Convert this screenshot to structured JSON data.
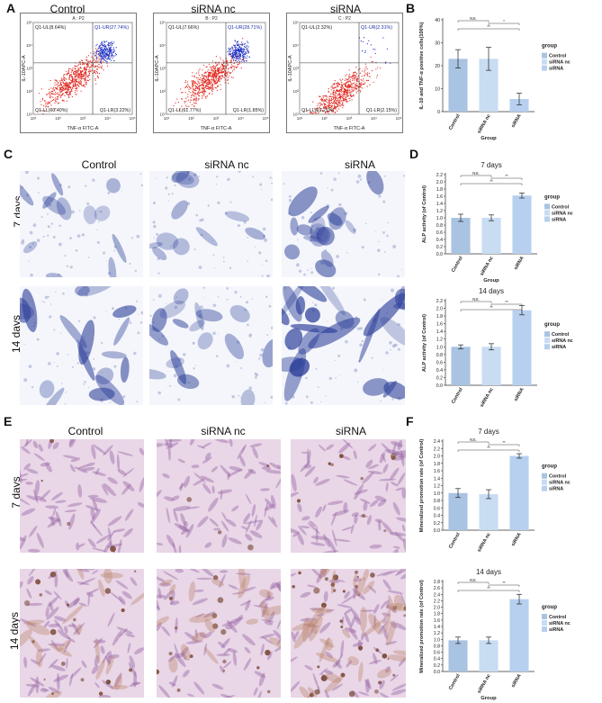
{
  "panel_labels": {
    "A": "A",
    "B": "B",
    "C": "C",
    "D": "D",
    "E": "E",
    "F": "F"
  },
  "group_names": [
    "Control",
    "siRNA nc",
    "siRNA"
  ],
  "row_labels": {
    "d7": "7 days",
    "d14": "14 days"
  },
  "flow": [
    {
      "header": "A : P2",
      "ul": "Q1-UL(8.64%)",
      "ur": "Q1-UR(27.74%)",
      "ll": "Q1-LL(60.40%)",
      "lr": "Q1-LR(3.22%)",
      "xlabel": "TNF-α FITC-A",
      "ylabel": "IL-10APC-A"
    },
    {
      "header": "B : P2",
      "ul": "Q1-UL(7.66%)",
      "ur": "Q1-UR(28.71%)",
      "ll": "Q1-LL(61.77%)",
      "lr": "Q1-LR(1.85%)",
      "xlabel": "TNF-α FITC-A",
      "ylabel": "IL-10APC-A"
    },
    {
      "header": "C : P2",
      "ul": "Q1-UL(2.32%)",
      "ur": "Q1-UR(2.31%)",
      "ll": "Q1-LL(93.21%)",
      "lr": "Q1-LR(2.15%)",
      "xlabel": "TNF-α FITC-A",
      "ylabel": "IL-10APC-A"
    }
  ],
  "flow_axis_ticks": [
    "10¹",
    "10²",
    "10³",
    "10⁴",
    "10⁵"
  ],
  "colors": {
    "control": "#a9c3e2",
    "sirna_nc": "#c8dcf2",
    "sirna": "#b8d0ef",
    "alp_stain": "#2c3f99",
    "ars_stain": "#7a4a36",
    "bg_he": "#e9d6e7"
  },
  "chart_data": [
    {
      "id": "B",
      "type": "bar",
      "title": "",
      "categories": [
        "Control",
        "siRNA nc",
        "siRNA"
      ],
      "values": [
        23,
        23,
        5.5
      ],
      "errors": [
        4,
        5,
        2.5
      ],
      "ylim": [
        0,
        40
      ],
      "yticks": [
        0,
        10,
        20,
        30,
        40
      ],
      "ylabel": "IL-10 and TNF-α positive cells(100%)",
      "xlabel": "Group",
      "legend_title": "group",
      "legend": [
        "Control",
        "siRNA nc",
        "siRNA"
      ],
      "sig": [
        {
          "from": 0,
          "to": 1,
          "label": "NS."
        },
        {
          "from": 0,
          "to": 2,
          "label": "**"
        },
        {
          "from": 1,
          "to": 2,
          "label": "*"
        }
      ]
    },
    {
      "id": "D7",
      "type": "bar",
      "title": "7 days",
      "categories": [
        "Control",
        "siRNA nc",
        "siRNA"
      ],
      "values": [
        1.0,
        1.0,
        1.62
      ],
      "errors": [
        0.1,
        0.08,
        0.07
      ],
      "ylim": [
        0,
        2.2
      ],
      "yticks": [
        0.0,
        0.2,
        0.4,
        0.6,
        0.8,
        1.0,
        1.2,
        1.4,
        1.6,
        1.8,
        2.0,
        2.2
      ],
      "ylabel": "ALP activity (of Control)",
      "xlabel": "Group",
      "legend_title": "group",
      "legend": [
        "Control",
        "siRNA nc",
        "siRNA"
      ],
      "sig": [
        {
          "from": 0,
          "to": 1,
          "label": "NS."
        },
        {
          "from": 0,
          "to": 2,
          "label": "**"
        },
        {
          "from": 1,
          "to": 2,
          "label": "**"
        }
      ]
    },
    {
      "id": "D14",
      "type": "bar",
      "title": "14 days",
      "categories": [
        "Control",
        "siRNA nc",
        "siRNA"
      ],
      "values": [
        1.0,
        1.0,
        1.95
      ],
      "errors": [
        0.05,
        0.08,
        0.12
      ],
      "ylim": [
        0,
        2.2
      ],
      "yticks": [
        0.0,
        0.2,
        0.4,
        0.6,
        0.8,
        1.0,
        1.2,
        1.4,
        1.6,
        1.8,
        2.0,
        2.2
      ],
      "ylabel": "ALP activity (of Control)",
      "xlabel": "",
      "legend_title": "group",
      "legend": [
        "Control",
        "siRNA nc",
        "siRNA"
      ],
      "sig": [
        {
          "from": 0,
          "to": 1,
          "label": "NS."
        },
        {
          "from": 0,
          "to": 2,
          "label": "**"
        },
        {
          "from": 1,
          "to": 2,
          "label": "**"
        }
      ]
    },
    {
      "id": "F7",
      "type": "bar",
      "title": "7 days",
      "categories": [
        "Control",
        "siRNA nc",
        "siRNA"
      ],
      "values": [
        1.0,
        0.97,
        2.0
      ],
      "errors": [
        0.12,
        0.12,
        0.06
      ],
      "ylim": [
        0,
        2.4
      ],
      "yticks": [
        0.0,
        0.2,
        0.4,
        0.6,
        0.8,
        1.0,
        1.2,
        1.4,
        1.6,
        1.8,
        2.0,
        2.2,
        2.4
      ],
      "ylabel": "Mineralized promotion rate (of Control)",
      "xlabel": "",
      "legend_title": "group",
      "legend": [
        "Control",
        "siRNA nc",
        "siRNA"
      ],
      "sig": [
        {
          "from": 0,
          "to": 1,
          "label": "NS."
        },
        {
          "from": 0,
          "to": 2,
          "label": "**"
        },
        {
          "from": 1,
          "to": 2,
          "label": "**"
        }
      ]
    },
    {
      "id": "F14",
      "type": "bar",
      "title": "14 days",
      "categories": [
        "Control",
        "siRNA nc",
        "siRNA"
      ],
      "values": [
        0.97,
        0.97,
        2.25
      ],
      "errors": [
        0.1,
        0.1,
        0.15
      ],
      "ylim": [
        0,
        2.8
      ],
      "yticks": [
        0.0,
        0.2,
        0.4,
        0.6,
        0.8,
        1.0,
        1.2,
        1.4,
        1.6,
        1.8,
        2.0,
        2.2,
        2.4,
        2.6,
        2.8
      ],
      "ylabel": "Mineralized promotion rate (of Control)",
      "xlabel": "Group",
      "legend_title": "group",
      "legend": [
        "Control",
        "siRNA nc",
        "siRNA"
      ],
      "sig": [
        {
          "from": 0,
          "to": 1,
          "label": "NS."
        },
        {
          "from": 0,
          "to": 2,
          "label": "**"
        },
        {
          "from": 1,
          "to": 2,
          "label": "**"
        }
      ]
    }
  ]
}
